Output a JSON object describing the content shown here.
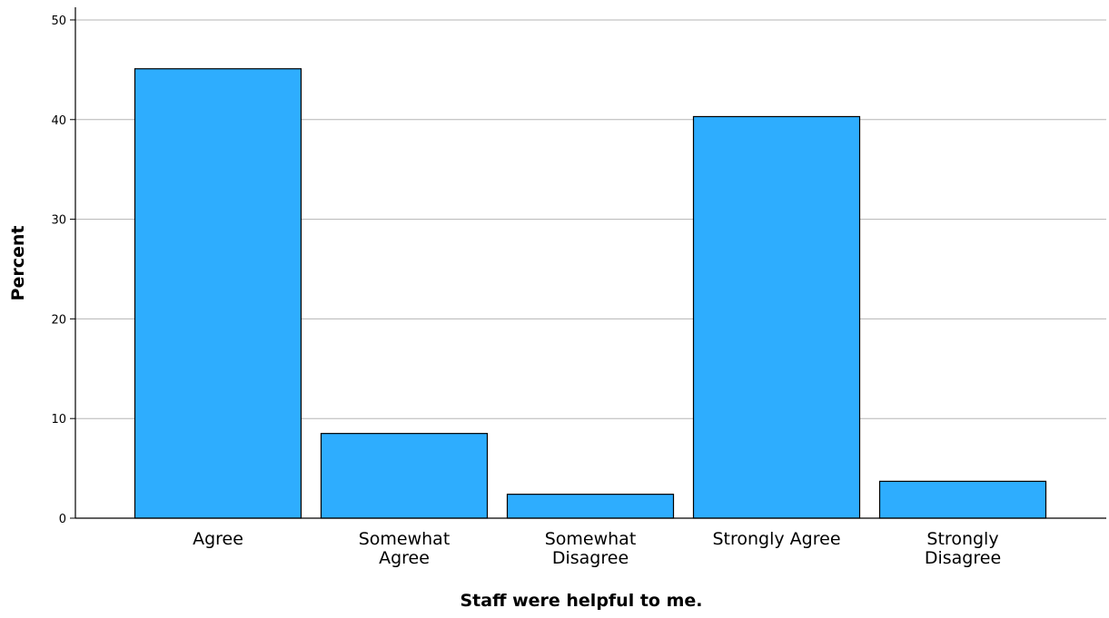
{
  "chart_data": {
    "type": "bar",
    "title": "",
    "xlabel": "Staff were helpful to me.",
    "ylabel": "Percent",
    "categories": [
      [
        "Agree"
      ],
      [
        "Somewhat",
        "Agree"
      ],
      [
        "Somewhat",
        "Disagree"
      ],
      [
        "Strongly Agree"
      ],
      [
        "Strongly",
        "Disagree"
      ]
    ],
    "values": [
      45.1,
      8.5,
      2.4,
      40.3,
      3.7
    ],
    "ylim": [
      0,
      52
    ],
    "yticks": [
      0,
      10,
      20,
      30,
      40,
      50
    ],
    "grid": true,
    "bar_color": "#2eadfe",
    "legend": "none"
  }
}
